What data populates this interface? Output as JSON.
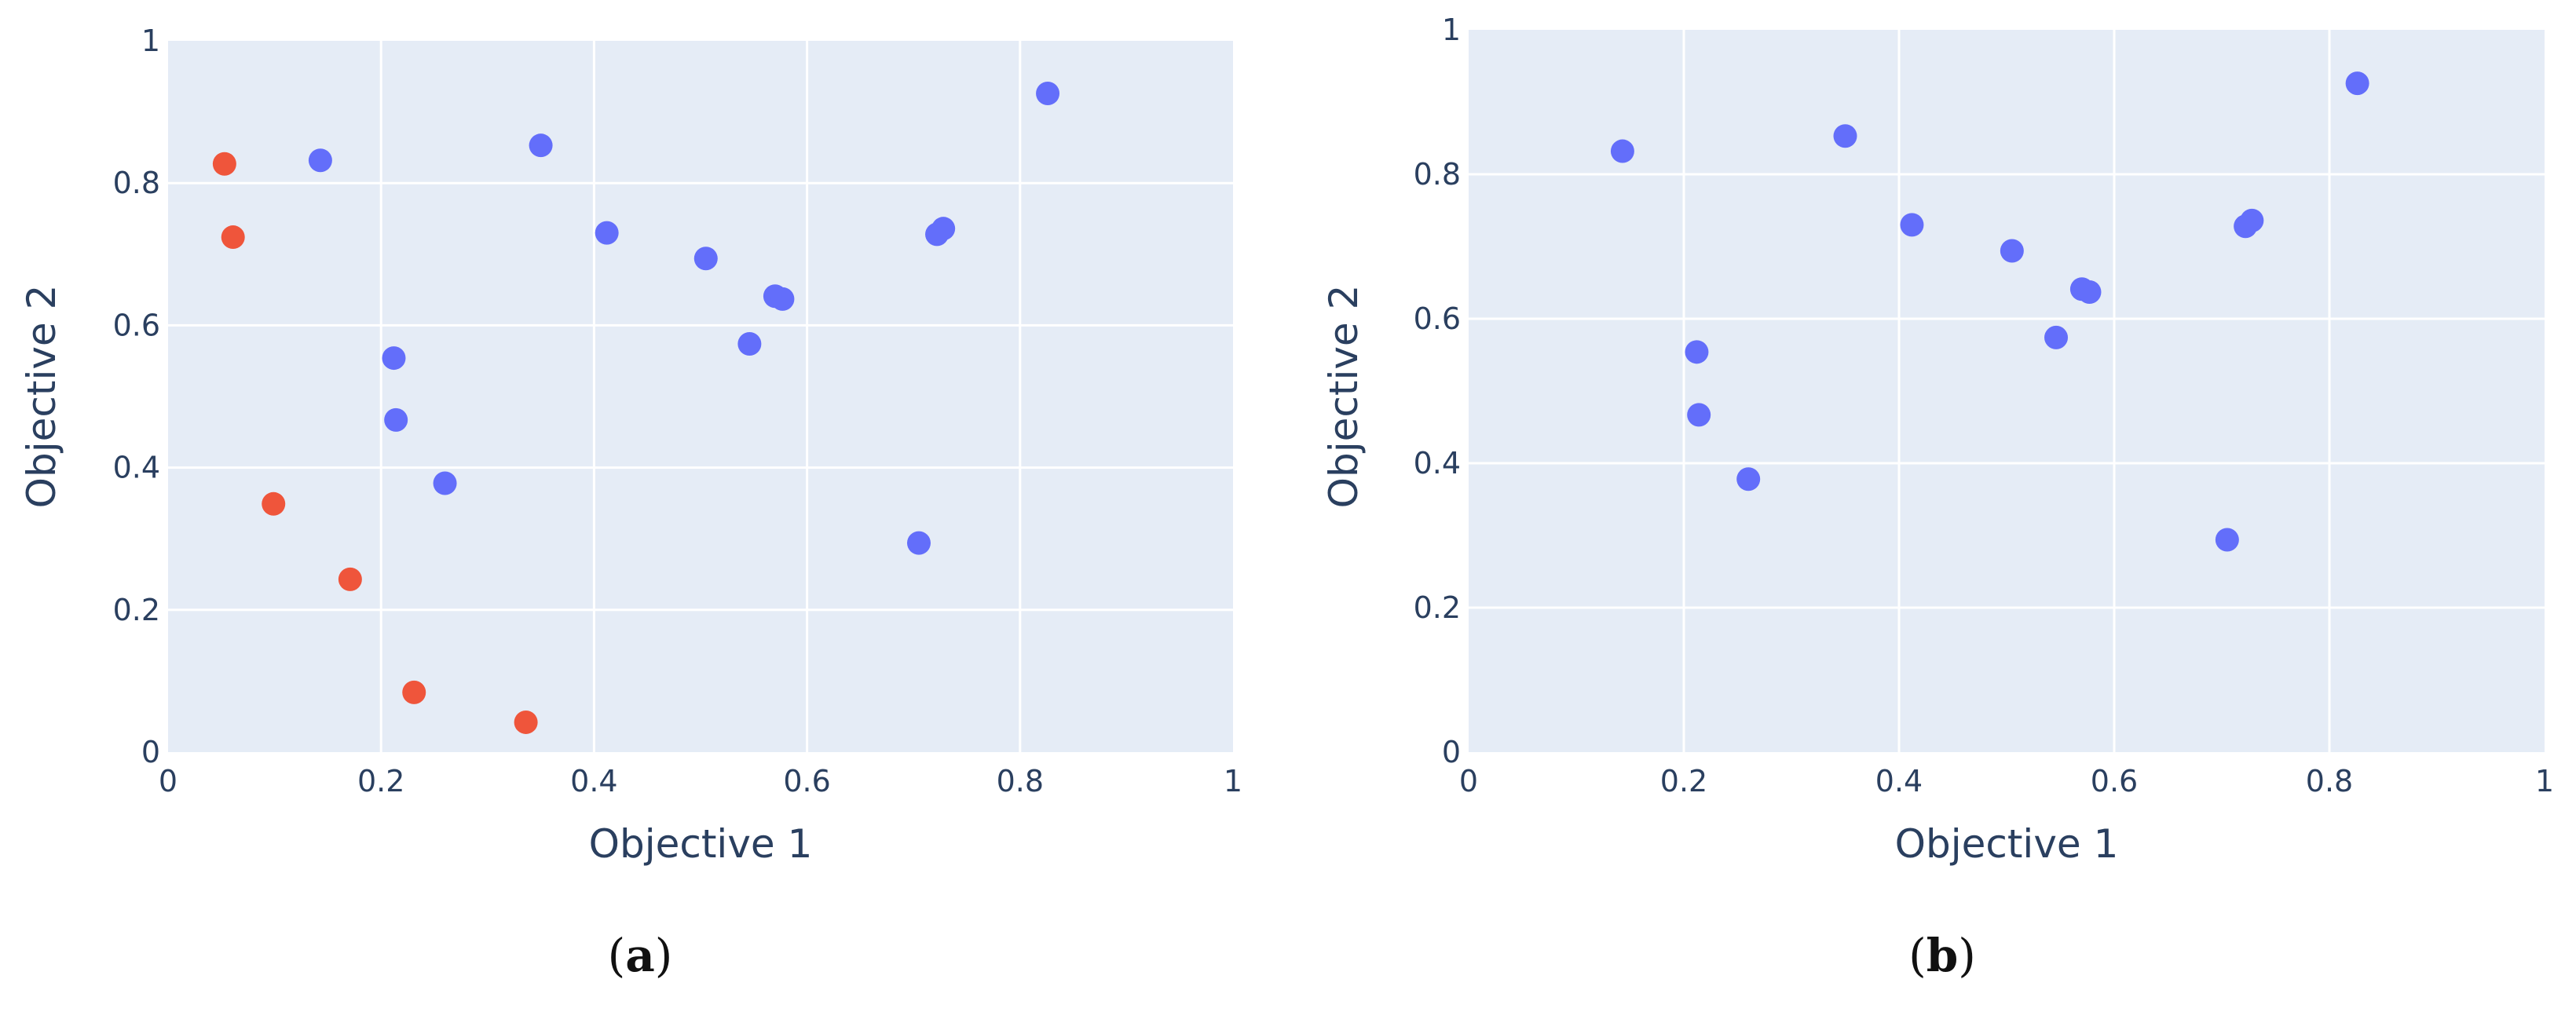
{
  "chart_data": [
    {
      "type": "scatter",
      "panel_label": "a",
      "xlabel": "Objective 1",
      "ylabel": "Objective 2",
      "xlim": [
        0,
        1
      ],
      "ylim": [
        0,
        1
      ],
      "x_ticks": [
        "0",
        "0.2",
        "0.4",
        "0.6",
        "0.8",
        "1"
      ],
      "y_ticks": [
        "0",
        "0.2",
        "0.4",
        "0.6",
        "0.8",
        "1"
      ],
      "grid": true,
      "legend": false,
      "series": [
        {
          "color": "#636EFA",
          "points": [
            {
              "x": 0.143,
              "y": 0.832
            },
            {
              "x": 0.35,
              "y": 0.853
            },
            {
              "x": 0.212,
              "y": 0.554
            },
            {
              "x": 0.214,
              "y": 0.467
            },
            {
              "x": 0.26,
              "y": 0.378
            },
            {
              "x": 0.412,
              "y": 0.73
            },
            {
              "x": 0.505,
              "y": 0.694
            },
            {
              "x": 0.546,
              "y": 0.574
            },
            {
              "x": 0.57,
              "y": 0.641
            },
            {
              "x": 0.577,
              "y": 0.637
            },
            {
              "x": 0.705,
              "y": 0.294
            },
            {
              "x": 0.722,
              "y": 0.728
            },
            {
              "x": 0.728,
              "y": 0.736
            },
            {
              "x": 0.826,
              "y": 0.926
            }
          ]
        },
        {
          "color": "#EF553B",
          "points": [
            {
              "x": 0.053,
              "y": 0.827
            },
            {
              "x": 0.061,
              "y": 0.724
            },
            {
              "x": 0.099,
              "y": 0.349
            },
            {
              "x": 0.171,
              "y": 0.243
            },
            {
              "x": 0.231,
              "y": 0.084
            },
            {
              "x": 0.336,
              "y": 0.042
            }
          ]
        }
      ]
    },
    {
      "type": "scatter",
      "panel_label": "b",
      "xlabel": "Objective 1",
      "ylabel": "Objective 2",
      "xlim": [
        0,
        1
      ],
      "ylim": [
        0,
        1
      ],
      "x_ticks": [
        "0",
        "0.2",
        "0.4",
        "0.6",
        "0.8",
        "1"
      ],
      "y_ticks": [
        "0",
        "0.2",
        "0.4",
        "0.6",
        "0.8",
        "1"
      ],
      "grid": true,
      "legend": false,
      "series": [
        {
          "color": "#636EFA",
          "points": [
            {
              "x": 0.143,
              "y": 0.832
            },
            {
              "x": 0.35,
              "y": 0.853
            },
            {
              "x": 0.212,
              "y": 0.554
            },
            {
              "x": 0.214,
              "y": 0.467
            },
            {
              "x": 0.26,
              "y": 0.378
            },
            {
              "x": 0.412,
              "y": 0.73
            },
            {
              "x": 0.505,
              "y": 0.694
            },
            {
              "x": 0.546,
              "y": 0.574
            },
            {
              "x": 0.57,
              "y": 0.641
            },
            {
              "x": 0.577,
              "y": 0.637
            },
            {
              "x": 0.705,
              "y": 0.294
            },
            {
              "x": 0.722,
              "y": 0.728
            },
            {
              "x": 0.728,
              "y": 0.736
            },
            {
              "x": 0.826,
              "y": 0.926
            }
          ]
        }
      ]
    }
  ]
}
